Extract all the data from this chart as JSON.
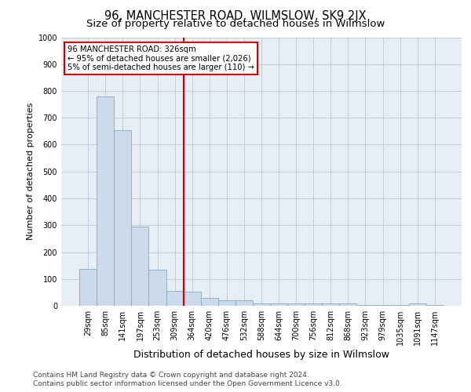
{
  "title": "96, MANCHESTER ROAD, WILMSLOW, SK9 2JX",
  "subtitle": "Size of property relative to detached houses in Wilmslow",
  "xlabel": "Distribution of detached houses by size in Wilmslow",
  "ylabel": "Number of detached properties",
  "bar_labels": [
    "29sqm",
    "85sqm",
    "141sqm",
    "197sqm",
    "253sqm",
    "309sqm",
    "364sqm",
    "420sqm",
    "476sqm",
    "532sqm",
    "588sqm",
    "644sqm",
    "700sqm",
    "756sqm",
    "812sqm",
    "868sqm",
    "923sqm",
    "979sqm",
    "1035sqm",
    "1091sqm",
    "1147sqm"
  ],
  "bar_values": [
    138,
    780,
    655,
    295,
    133,
    55,
    53,
    30,
    20,
    20,
    10,
    10,
    10,
    10,
    10,
    10,
    2,
    2,
    2,
    10,
    2
  ],
  "bar_color": "#ccdaeb",
  "bar_edge_color": "#85aacb",
  "vline_x": 5.5,
  "vline_color": "#cc0000",
  "annotation_line1": "96 MANCHESTER ROAD: 326sqm",
  "annotation_line2": "← 95% of detached houses are smaller (2,026)",
  "annotation_line3": "5% of semi-detached houses are larger (110) →",
  "annotation_box_color": "#cc0000",
  "ylim": [
    0,
    1000
  ],
  "yticks": [
    0,
    100,
    200,
    300,
    400,
    500,
    600,
    700,
    800,
    900,
    1000
  ],
  "grid_color": "#c0ccd8",
  "bg_color": "#e8eef5",
  "footer1": "Contains HM Land Registry data © Crown copyright and database right 2024.",
  "footer2": "Contains public sector information licensed under the Open Government Licence v3.0.",
  "title_fontsize": 10.5,
  "subtitle_fontsize": 9.5,
  "xlabel_fontsize": 9,
  "ylabel_fontsize": 8,
  "tick_fontsize": 7,
  "footer_fontsize": 6.5
}
